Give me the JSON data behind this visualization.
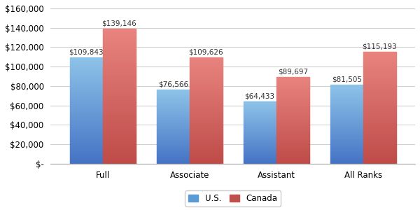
{
  "categories": [
    "Full",
    "Associate",
    "Assistant",
    "All Ranks"
  ],
  "us_values": [
    109843,
    76566,
    64433,
    81505
  ],
  "canada_values": [
    139146,
    109626,
    89697,
    115193
  ],
  "us_labels": [
    "$109,843",
    "$76,566",
    "$64,433",
    "$81,505"
  ],
  "canada_labels": [
    "$139,146",
    "$109,626",
    "$89,697",
    "$115,193"
  ],
  "us_color_top": "#8ab4e0",
  "us_color_bottom": "#4472c4",
  "canada_color_top": "#e07070",
  "canada_color_bottom": "#c0392b",
  "us_color": "#5b9bd5",
  "canada_color": "#c0504d",
  "ylim": [
    0,
    160000
  ],
  "yticks": [
    0,
    20000,
    40000,
    60000,
    80000,
    100000,
    120000,
    140000,
    160000
  ],
  "ytick_labels": [
    "$-",
    "$20,000",
    "$40,000",
    "$60,000",
    "$80,000",
    "$100,000",
    "$120,000",
    "$140,000",
    "$160,000"
  ],
  "legend_us": "U.S.",
  "legend_canada": "Canada",
  "background_color": "#ffffff",
  "plot_background": "#ffffff",
  "bar_width": 0.38,
  "label_fontsize": 7.5,
  "tick_fontsize": 8.5,
  "legend_fontsize": 8.5
}
